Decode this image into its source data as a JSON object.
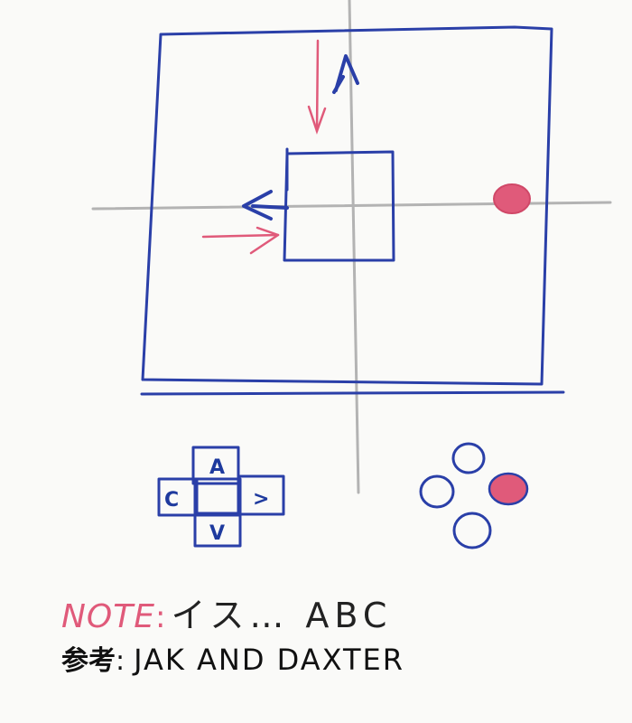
{
  "colors": {
    "ink_blue": "#2a3fa8",
    "ink_pink": "#e05a7a",
    "pencil_gray": "#b3b3b3",
    "ink_black": "#111111"
  },
  "dpad": {
    "up_letter": "A",
    "left_letter": "C",
    "right_letter": ">",
    "down_letter": "V"
  },
  "note": {
    "label": "NOTE",
    "separator": ":",
    "text": "イス… ABC"
  },
  "reference": {
    "label": "参考",
    "separator": ":",
    "text": "JAK AND DAXTER"
  }
}
